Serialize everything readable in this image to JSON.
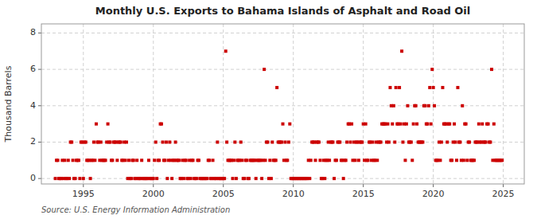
{
  "chart_data": {
    "type": "scatter",
    "title": "Monthly U.S. Exports to Bahama Islands of Asphalt and Road Oil",
    "ylabel": "Thousand Barrels",
    "source": "Source: U.S. Energy Information Administration",
    "color": "#cc0000",
    "marker": "square",
    "grid": true,
    "xlim": [
      1992.0,
      2026.5
    ],
    "xticks": [
      1995,
      2000,
      2005,
      2010,
      2015,
      2020,
      2025
    ],
    "ylim": [
      -0.3,
      8.5
    ],
    "yticks": [
      0,
      2,
      4,
      6,
      8
    ],
    "x": [
      1993.0,
      1993.08,
      1993.17,
      1993.25,
      1993.33,
      1993.42,
      1993.5,
      1993.58,
      1993.67,
      1993.75,
      1993.83,
      1993.92,
      1994.0,
      1994.08,
      1994.17,
      1994.25,
      1994.33,
      1994.42,
      1994.5,
      1994.58,
      1994.67,
      1994.75,
      1994.83,
      1994.92,
      1995.0,
      1995.08,
      1995.17,
      1995.25,
      1995.33,
      1995.42,
      1995.5,
      1995.58,
      1995.67,
      1995.75,
      1995.83,
      1995.92,
      1996.0,
      1996.08,
      1996.17,
      1996.25,
      1996.33,
      1996.42,
      1996.5,
      1996.58,
      1996.67,
      1996.75,
      1996.83,
      1996.92,
      1997.0,
      1997.08,
      1997.17,
      1997.25,
      1997.33,
      1997.42,
      1997.5,
      1997.58,
      1997.67,
      1997.75,
      1997.83,
      1997.92,
      1998.0,
      1998.08,
      1998.17,
      1998.25,
      1998.33,
      1998.42,
      1998.5,
      1998.58,
      1998.67,
      1998.75,
      1998.83,
      1998.92,
      1999.0,
      1999.08,
      1999.17,
      1999.25,
      1999.33,
      1999.42,
      1999.5,
      1999.58,
      1999.67,
      1999.75,
      1999.83,
      1999.92,
      2000.0,
      2000.08,
      2000.17,
      2000.25,
      2000.33,
      2000.42,
      2000.5,
      2000.58,
      2000.67,
      2000.75,
      2000.83,
      2000.92,
      2001.0,
      2001.08,
      2001.17,
      2001.25,
      2001.33,
      2001.42,
      2001.5,
      2001.58,
      2001.67,
      2001.75,
      2001.83,
      2001.92,
      2002.0,
      2002.08,
      2002.17,
      2002.25,
      2002.33,
      2002.42,
      2002.5,
      2002.58,
      2002.67,
      2002.75,
      2002.83,
      2002.92,
      2003.0,
      2003.08,
      2003.17,
      2003.25,
      2003.33,
      2003.42,
      2003.5,
      2003.58,
      2003.67,
      2003.75,
      2003.83,
      2003.92,
      2004.0,
      2004.08,
      2004.17,
      2004.25,
      2004.33,
      2004.42,
      2004.5,
      2004.58,
      2004.67,
      2004.75,
      2004.83,
      2004.92,
      2005.0,
      2005.08,
      2005.17,
      2005.25,
      2005.33,
      2005.42,
      2005.5,
      2005.58,
      2005.67,
      2005.75,
      2005.83,
      2005.92,
      2006.0,
      2006.08,
      2006.17,
      2006.25,
      2006.33,
      2006.42,
      2006.5,
      2006.58,
      2006.67,
      2006.75,
      2006.83,
      2006.92,
      2007.0,
      2007.08,
      2007.17,
      2007.25,
      2007.33,
      2007.42,
      2007.5,
      2007.58,
      2007.67,
      2007.75,
      2007.83,
      2007.92,
      2008.0,
      2008.08,
      2008.17,
      2008.25,
      2008.33,
      2008.42,
      2008.5,
      2008.58,
      2008.67,
      2008.75,
      2008.83,
      2008.92,
      2009.0,
      2009.08,
      2009.17,
      2009.25,
      2009.33,
      2009.42,
      2009.5,
      2009.58,
      2009.67,
      2009.75,
      2009.83,
      2009.92,
      2010.0,
      2010.08,
      2010.17,
      2010.25,
      2010.33,
      2010.42,
      2010.5,
      2010.58,
      2010.67,
      2010.75,
      2010.83,
      2010.92,
      2011.0,
      2011.08,
      2011.17,
      2011.25,
      2011.33,
      2011.42,
      2011.5,
      2011.58,
      2011.67,
      2011.75,
      2011.83,
      2011.92,
      2012.0,
      2012.08,
      2012.17,
      2012.25,
      2012.33,
      2012.42,
      2012.5,
      2012.58,
      2012.67,
      2012.75,
      2012.83,
      2012.92,
      2013.0,
      2013.08,
      2013.17,
      2013.25,
      2013.33,
      2013.42,
      2013.5,
      2013.58,
      2013.67,
      2013.75,
      2013.83,
      2013.92,
      2014.0,
      2014.08,
      2014.17,
      2014.25,
      2014.33,
      2014.42,
      2014.5,
      2014.58,
      2014.67,
      2014.75,
      2014.83,
      2014.92,
      2015.0,
      2015.08,
      2015.17,
      2015.25,
      2015.33,
      2015.42,
      2015.5,
      2015.58,
      2015.67,
      2015.75,
      2015.83,
      2015.92,
      2016.0,
      2016.08,
      2016.17,
      2016.25,
      2016.33,
      2016.42,
      2016.5,
      2016.58,
      2016.67,
      2016.75,
      2016.83,
      2016.92,
      2017.0,
      2017.08,
      2017.17,
      2017.25,
      2017.33,
      2017.42,
      2017.5,
      2017.58,
      2017.67,
      2017.75,
      2017.83,
      2017.92,
      2018.0,
      2018.08,
      2018.17,
      2018.25,
      2018.33,
      2018.42,
      2018.5,
      2018.58,
      2018.67,
      2018.75,
      2018.83,
      2018.92,
      2019.0,
      2019.08,
      2019.17,
      2019.25,
      2019.33,
      2019.42,
      2019.5,
      2019.58,
      2019.67,
      2019.75,
      2019.83,
      2019.92,
      2020.0,
      2020.08,
      2020.17,
      2020.25,
      2020.33,
      2020.42,
      2020.5,
      2020.58,
      2020.67,
      2020.75,
      2020.83,
      2020.92,
      2021.0,
      2021.08,
      2021.17,
      2021.25,
      2021.33,
      2021.42,
      2021.5,
      2021.58,
      2021.67,
      2021.75,
      2021.83,
      2021.92,
      2022.0,
      2022.08,
      2022.17,
      2022.25,
      2022.33,
      2022.42,
      2022.5,
      2022.58,
      2022.67,
      2022.75,
      2022.83,
      2022.92,
      2023.0,
      2023.08,
      2023.17,
      2023.25,
      2023.33,
      2023.42,
      2023.5,
      2023.58,
      2023.67,
      2023.75,
      2023.83,
      2023.92,
      2024.0,
      2024.08,
      2024.17,
      2024.25,
      2024.33,
      2024.42,
      2024.5,
      2024.58,
      2024.67,
      2024.75,
      2024.83,
      2024.92
    ],
    "y": [
      0,
      1,
      1,
      0,
      0,
      0,
      1,
      0,
      1,
      0,
      0,
      1,
      0,
      2,
      2,
      1,
      0,
      0,
      1,
      1,
      1,
      0,
      2,
      2,
      0,
      2,
      2,
      1,
      1,
      1,
      0,
      1,
      1,
      2,
      1,
      3,
      2,
      2,
      1,
      2,
      1,
      1,
      1,
      1,
      2,
      3,
      2,
      2,
      1,
      1,
      2,
      2,
      2,
      1,
      2,
      2,
      2,
      1,
      1,
      2,
      1,
      2,
      0,
      1,
      0,
      0,
      1,
      1,
      0,
      0,
      1,
      0,
      0,
      0,
      1,
      0,
      0,
      0,
      0,
      0,
      1,
      0,
      0,
      0,
      0,
      1,
      2,
      0,
      1,
      1,
      3,
      3,
      2,
      1,
      1,
      2,
      0,
      1,
      2,
      1,
      0,
      1,
      1,
      2,
      1,
      1,
      1,
      0,
      0,
      1,
      0,
      1,
      1,
      0,
      0,
      1,
      0,
      1,
      1,
      0,
      0,
      0,
      1,
      1,
      0,
      0,
      0,
      0,
      0,
      0,
      0,
      1,
      1,
      0,
      0,
      1,
      0,
      0,
      0,
      2,
      0,
      0,
      0,
      0,
      0,
      0,
      7,
      2,
      1,
      1,
      1,
      1,
      0,
      1,
      2,
      0,
      1,
      1,
      1,
      2,
      1,
      0,
      0,
      1,
      1,
      0,
      0,
      1,
      1,
      1,
      1,
      1,
      0,
      1,
      1,
      1,
      1,
      0,
      1,
      6,
      1,
      2,
      2,
      0,
      1,
      0,
      2,
      1,
      1,
      1,
      5,
      2,
      2,
      2,
      2,
      3,
      1,
      2,
      1,
      1,
      2,
      3,
      0,
      0,
      0,
      0,
      0,
      0,
      0,
      0,
      0,
      0,
      0,
      0,
      0,
      0,
      0,
      1,
      0,
      1,
      2,
      2,
      2,
      1,
      2,
      2,
      2,
      1,
      0,
      0,
      1,
      0,
      1,
      1,
      2,
      1,
      2,
      2,
      2,
      0,
      1,
      1,
      2,
      2,
      2,
      1,
      1,
      0,
      1,
      1,
      2,
      3,
      3,
      2,
      3,
      1,
      2,
      1,
      2,
      2,
      1,
      2,
      2,
      2,
      3,
      1,
      3,
      1,
      1,
      2,
      2,
      1,
      2,
      1,
      1,
      2,
      1,
      2,
      2,
      2,
      3,
      3,
      3,
      3,
      2,
      3,
      2,
      5,
      4,
      3,
      4,
      2,
      5,
      3,
      3,
      5,
      3,
      7,
      2,
      3,
      1,
      3,
      4,
      2,
      2,
      2,
      1,
      3,
      4,
      4,
      3,
      2,
      2,
      2,
      2,
      2,
      4,
      4,
      3,
      3,
      4,
      5,
      3,
      6,
      5,
      4,
      1,
      1,
      1,
      2,
      1,
      2,
      5,
      3,
      3,
      3,
      2,
      3,
      3,
      1,
      1,
      2,
      3,
      2,
      1,
      5,
      2,
      2,
      1,
      4,
      1,
      3,
      3,
      1,
      2,
      2,
      1,
      1,
      1,
      1,
      2,
      2,
      2,
      3,
      2,
      2,
      3,
      2,
      2,
      2,
      3,
      3,
      2,
      2,
      6,
      1,
      3,
      1,
      1,
      1,
      1,
      1,
      1,
      1
    ]
  }
}
